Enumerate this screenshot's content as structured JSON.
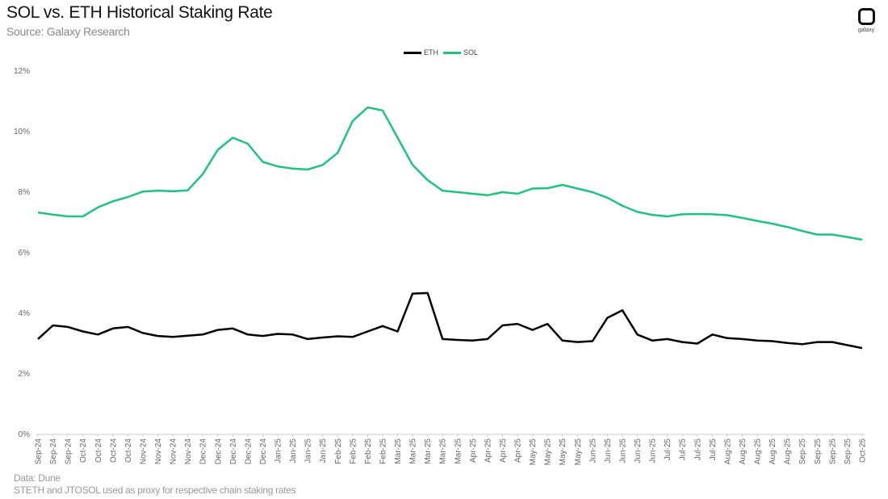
{
  "header": {
    "title": "SOL vs. ETH Historical Staking Rate",
    "subtitle": "Source: Galaxy Research",
    "logo_text": "galaxy"
  },
  "footer": {
    "data_note": "Data: Dune",
    "proxy_note": "STETH and JTOSOL used as proxy for respective chain staking rates"
  },
  "colors": {
    "eth": "#000000",
    "sol": "#1DC47F",
    "axis": "#cccccc",
    "label": "#666666"
  },
  "chart_data": {
    "type": "line",
    "title": "SOL vs. ETH Historical Staking Rate",
    "subtitle": "Source: Galaxy Research",
    "xlabel": "",
    "ylabel": "",
    "ylim": [
      0,
      12
    ],
    "yticks": [
      "0%",
      "2%",
      "4%",
      "6%",
      "8%",
      "10%",
      "12%"
    ],
    "grid": false,
    "legend_position": "top",
    "categories": [
      "Sep-24",
      "Sep-24",
      "Sep-24",
      "Oct-24",
      "Oct-24",
      "Oct-24",
      "Oct-24",
      "Nov-24",
      "Nov-24",
      "Nov-24",
      "Nov-24",
      "Dec-24",
      "Dec-24",
      "Dec-24",
      "Dec-24",
      "Dec-24",
      "Jan-25",
      "Jan-25",
      "Jan-25",
      "Jan-25",
      "Feb-25",
      "Feb-25",
      "Feb-25",
      "Feb-25",
      "Mar-25",
      "Mar-25",
      "Mar-25",
      "Mar-25",
      "Mar-25",
      "Apr-25",
      "Apr-25",
      "Apr-25",
      "Apr-25",
      "May-25",
      "May-25",
      "May-25",
      "May-25",
      "Jun-25",
      "Jun-25",
      "Jun-25",
      "Jun-25",
      "Jun-25",
      "Jul-25",
      "Jul-25",
      "Jul-25",
      "Jul-25",
      "Aug-25",
      "Aug-25",
      "Aug-25",
      "Aug-25",
      "Aug-25",
      "Sep-25",
      "Sep-25",
      "Sep-25",
      "Sep-25",
      "Oct-25"
    ],
    "series": [
      {
        "name": "ETH",
        "color": "#000000",
        "values": [
          3.15,
          3.6,
          3.55,
          3.4,
          3.3,
          3.5,
          3.55,
          3.35,
          3.25,
          3.22,
          3.26,
          3.3,
          3.45,
          3.5,
          3.3,
          3.25,
          3.32,
          3.3,
          3.15,
          3.2,
          3.24,
          3.22,
          3.4,
          3.58,
          3.4,
          4.65,
          4.67,
          3.15,
          3.12,
          3.1,
          3.15,
          3.6,
          3.65,
          3.45,
          3.65,
          3.1,
          3.05,
          3.08,
          3.85,
          4.1,
          3.3,
          3.1,
          3.15,
          3.05,
          3.0,
          3.3,
          3.18,
          3.15,
          3.1,
          3.08,
          3.02,
          2.98,
          3.05,
          3.05,
          2.95,
          2.85
        ]
      },
      {
        "name": "SOL",
        "color": "#1DC47F",
        "values": [
          7.33,
          7.26,
          7.2,
          7.2,
          7.5,
          7.7,
          7.84,
          8.02,
          8.05,
          8.03,
          8.06,
          8.6,
          9.4,
          9.8,
          9.6,
          9.0,
          8.85,
          8.78,
          8.75,
          8.9,
          9.3,
          10.35,
          10.8,
          10.7,
          9.8,
          8.9,
          8.4,
          8.05,
          8.0,
          7.95,
          7.9,
          8.0,
          7.95,
          8.12,
          8.13,
          8.24,
          8.12,
          8.0,
          7.82,
          7.55,
          7.35,
          7.25,
          7.2,
          7.27,
          7.28,
          7.27,
          7.24,
          7.15,
          7.05,
          6.96,
          6.85,
          6.72,
          6.6,
          6.6,
          6.52,
          6.43
        ]
      }
    ]
  },
  "legend": {
    "items": [
      {
        "label": "ETH"
      },
      {
        "label": "SOL"
      }
    ]
  }
}
